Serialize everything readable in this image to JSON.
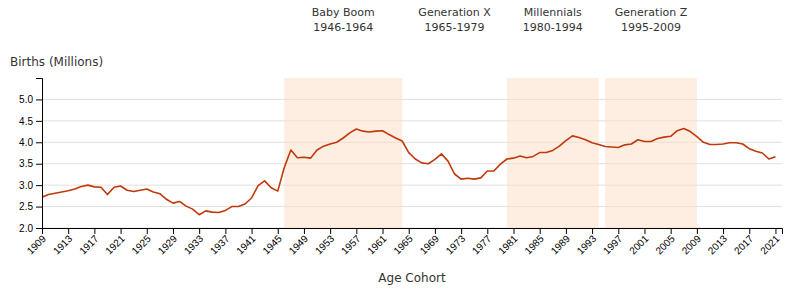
{
  "chart_data": {
    "type": "line",
    "ylabel": "Births (Millions)",
    "xlabel": "Age Cohort",
    "color": "#C0390B",
    "grid": true,
    "xlim": [
      1909,
      2022
    ],
    "xticks": [
      1909,
      1913,
      1917,
      1921,
      1925,
      1929,
      1933,
      1937,
      1941,
      1945,
      1949,
      1953,
      1957,
      1961,
      1965,
      1969,
      1973,
      1977,
      1981,
      1985,
      1989,
      1993,
      1997,
      2001,
      2005,
      2009,
      2013,
      2017,
      2021
    ],
    "ylim": [
      2.0,
      5.5
    ],
    "yticks": [
      {
        "value": 2.0,
        "label": "2.0"
      },
      2.5,
      {
        "value": 3.0,
        "label": "3.0"
      },
      3.5,
      {
        "value": 4.0,
        "label": "4.0"
      },
      4.5,
      {
        "value": 5.0,
        "label": "5.0"
      }
    ],
    "shaded_regions": [
      {
        "xmin": 1946,
        "xmax": 1964,
        "color": "#FDDCC4"
      },
      {
        "xmin": 1980,
        "xmax": 1994,
        "color": "#FDDCC4"
      },
      {
        "xmin": 1995,
        "xmax": 2009,
        "color": "#FDDCC4"
      }
    ],
    "annotations": [
      {
        "x": 1955,
        "lines": [
          "Baby Boom",
          "1946-1964"
        ]
      },
      {
        "x": 1987,
        "lines": [
          "Millennials",
          "1980-1994"
        ]
      },
      {
        "x": 2002,
        "lines": [
          "Generation Z",
          "1995-2009"
        ]
      },
      {
        "x": 1972,
        "lines": [
          "Generation X",
          "1965-1979"
        ]
      }
    ],
    "x": [
      1909,
      1910,
      1911,
      1912,
      1913,
      1914,
      1915,
      1916,
      1917,
      1918,
      1919,
      1920,
      1921,
      1922,
      1923,
      1924,
      1925,
      1926,
      1927,
      1928,
      1929,
      1930,
      1931,
      1932,
      1933,
      1934,
      1935,
      1936,
      1937,
      1938,
      1939,
      1940,
      1941,
      1942,
      1943,
      1944,
      1945,
      1946,
      1947,
      1948,
      1949,
      1950,
      1951,
      1952,
      1953,
      1954,
      1955,
      1956,
      1957,
      1958,
      1959,
      1960,
      1961,
      1962,
      1963,
      1964,
      1965,
      1966,
      1967,
      1968,
      1969,
      1970,
      1971,
      1972,
      1973,
      1974,
      1975,
      1976,
      1977,
      1978,
      1979,
      1980,
      1981,
      1982,
      1983,
      1984,
      1985,
      1986,
      1987,
      1988,
      1989,
      1990,
      1991,
      1992,
      1993,
      1994,
      1995,
      1996,
      1997,
      1998,
      1999,
      2000,
      2001,
      2002,
      2003,
      2004,
      2005,
      2006,
      2007,
      2008,
      2009,
      2010,
      2011,
      2012,
      2013,
      2014,
      2015,
      2016,
      2017,
      2018,
      2019,
      2020,
      2021
    ],
    "values": [
      2.72,
      2.78,
      2.81,
      2.84,
      2.87,
      2.91,
      2.97,
      3.0,
      2.96,
      2.95,
      2.78,
      2.95,
      2.98,
      2.88,
      2.85,
      2.88,
      2.91,
      2.84,
      2.8,
      2.67,
      2.58,
      2.62,
      2.51,
      2.44,
      2.31,
      2.4,
      2.37,
      2.36,
      2.41,
      2.5,
      2.5,
      2.56,
      2.7,
      2.99,
      3.1,
      2.94,
      2.86,
      3.41,
      3.82,
      3.64,
      3.65,
      3.63,
      3.82,
      3.91,
      3.96,
      4.0,
      4.1,
      4.22,
      4.31,
      4.26,
      4.24,
      4.26,
      4.27,
      4.18,
      4.1,
      4.03,
      3.76,
      3.61,
      3.52,
      3.5,
      3.6,
      3.73,
      3.56,
      3.26,
      3.14,
      3.16,
      3.14,
      3.17,
      3.33,
      3.33,
      3.49,
      3.61,
      3.63,
      3.68,
      3.64,
      3.67,
      3.76,
      3.76,
      3.81,
      3.91,
      4.04,
      4.15,
      4.11,
      4.06,
      3.99,
      3.95,
      3.9,
      3.89,
      3.88,
      3.94,
      3.96,
      4.06,
      4.02,
      4.02,
      4.09,
      4.12,
      4.14,
      4.27,
      4.32,
      4.25,
      4.13,
      4.0,
      3.95,
      3.95,
      3.96,
      3.99,
      3.99,
      3.96,
      3.85,
      3.79,
      3.75,
      3.61,
      3.66
    ]
  }
}
